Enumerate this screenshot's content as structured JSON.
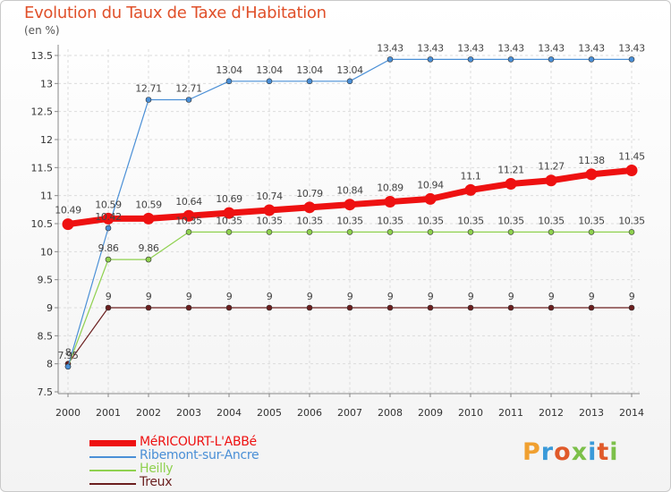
{
  "title": "Evolution du Taux de Taxe d'Habitation",
  "unit_label": "(en %)",
  "logo": {
    "text": "Proxiti",
    "colors": [
      "#f0a030",
      "#3a9ad9",
      "#e05a2a",
      "#7cc04a",
      "#3a9ad9",
      "#e05a2a",
      "#7cc04a"
    ]
  },
  "chart_data": {
    "type": "line",
    "title": "Evolution du Taux de Taxe d'Habitation",
    "ylabel": "(en %)",
    "xlabel": "",
    "ylim": [
      7.5,
      13.5
    ],
    "yticks": [
      "7.5",
      "8",
      "8.5",
      "9",
      "9.5",
      "10",
      "10.5",
      "11",
      "11.5",
      "12",
      "12.5",
      "13",
      "13.5"
    ],
    "x": [
      "2000",
      "2001",
      "2002",
      "2003",
      "2004",
      "2005",
      "2006",
      "2007",
      "2008",
      "2009",
      "2010",
      "2011",
      "2012",
      "2013",
      "2014"
    ],
    "grid": true,
    "legend_position": "bottom-left",
    "series": [
      {
        "name": "MéRICOURT-L'ABBé",
        "color": "#ee1111",
        "values": [
          10.49,
          10.59,
          10.59,
          10.64,
          10.69,
          10.74,
          10.79,
          10.84,
          10.89,
          10.94,
          11.1,
          11.21,
          11.27,
          11.38,
          11.45
        ],
        "labels": [
          "10.49",
          "10.59",
          "10.59",
          "10.64",
          "10.69",
          "10.74",
          "10.79",
          "10.84",
          "10.89",
          "10.94",
          "11.1",
          "11.21",
          "11.27",
          "11.38",
          "11.45"
        ]
      },
      {
        "name": "Ribemont-sur-Ancre",
        "color": "#4a8fd6",
        "values": [
          7.95,
          10.42,
          12.71,
          12.71,
          13.04,
          13.04,
          13.04,
          13.04,
          13.43,
          13.43,
          13.43,
          13.43,
          13.43,
          13.43,
          13.43
        ],
        "labels": [
          "",
          "10.42",
          "12.71",
          "12.71",
          "13.04",
          "13.04",
          "13.04",
          "13.04",
          "13.43",
          "13.43",
          "13.43",
          "13.43",
          "13.43",
          "13.43",
          "13.43"
        ]
      },
      {
        "name": "Heilly",
        "color": "#8fd14f",
        "values": [
          7.95,
          9.86,
          9.86,
          10.35,
          10.35,
          10.35,
          10.35,
          10.35,
          10.35,
          10.35,
          10.35,
          10.35,
          10.35,
          10.35,
          10.35
        ],
        "labels": [
          "7.95",
          "9.86",
          "9.86",
          "10.35",
          "10.35",
          "10.35",
          "10.35",
          "10.35",
          "10.35",
          "10.35",
          "10.35",
          "10.35",
          "10.35",
          "10.35",
          "10.35"
        ]
      },
      {
        "name": "Treux",
        "color": "#6b1f1f",
        "values": [
          8,
          9,
          9,
          9,
          9,
          9,
          9,
          9,
          9,
          9,
          9,
          9,
          9,
          9,
          9
        ],
        "labels": [
          "8",
          "9",
          "9",
          "9",
          "9",
          "9",
          "9",
          "9",
          "9",
          "9",
          "9",
          "9",
          "9",
          "9",
          "9"
        ]
      }
    ]
  }
}
